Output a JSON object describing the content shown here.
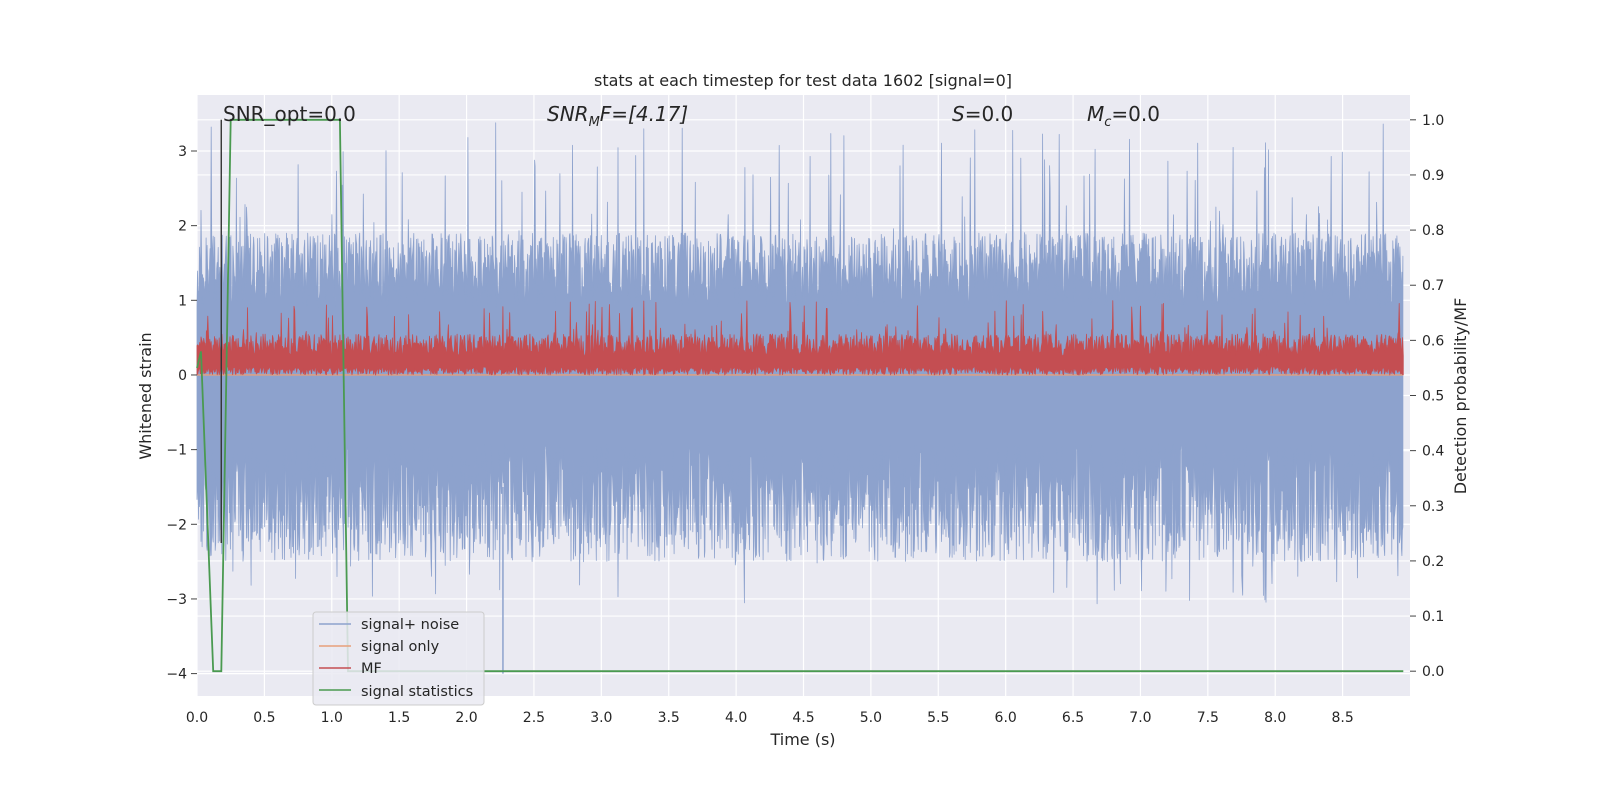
{
  "chart_data": {
    "type": "line",
    "title": "stats at each timestep for test data 1602 [signal=0]",
    "xlabel": "Time (s)",
    "ylabel": "Whitened strain",
    "ylabel_right": "Detection probability/MF",
    "xlim": [
      0.0,
      9.0
    ],
    "ylim": [
      -4.3,
      3.75
    ],
    "ylim_right": [
      -0.045,
      1.045
    ],
    "x_ticks": [
      "0.0",
      "0.5",
      "1.0",
      "1.5",
      "2.0",
      "2.5",
      "3.0",
      "3.5",
      "4.0",
      "4.5",
      "5.0",
      "5.5",
      "6.0",
      "6.5",
      "7.0",
      "7.5",
      "8.0",
      "8.5"
    ],
    "y_ticks": [
      "3",
      "2",
      "1",
      "0",
      "−1",
      "−2",
      "−3",
      "−4"
    ],
    "y_ticks_right": [
      "1.0",
      "0.9",
      "0.8",
      "0.7",
      "0.6",
      "0.5",
      "0.4",
      "0.3",
      "0.2",
      "0.1",
      "0.0"
    ],
    "grid": true,
    "legend_position": "lower-left",
    "annotations": {
      "snr_opt": "SNR_opt=0.0",
      "snr_mf_main": "SNR",
      "snr_mf_sub": "M",
      "snr_mf_rest": "F=[4.17]",
      "s_main": "S",
      "s_rest": "=0.0",
      "mc_main": "M",
      "mc_sub": "c",
      "mc_rest": "=0.0"
    },
    "marker_line_x": 0.18,
    "series": [
      {
        "name": "signal+ noise",
        "color": "#8da2cd",
        "axis": "left",
        "description": "noise band",
        "band_low": -1.6,
        "band_high": 1.9,
        "spike_max": 3.4,
        "spike_min": -4.0
      },
      {
        "name": "signal only",
        "color": "#e8a07a",
        "axis": "left",
        "x": [
          0.0,
          9.0
        ],
        "y": [
          0.0,
          0.0
        ]
      },
      {
        "name": "MF",
        "color": "#c44e52",
        "axis": "left",
        "baseline": 0.0,
        "typical_high": 0.55,
        "max": 1.0
      },
      {
        "name": "signal statistics",
        "color": "#4a9a50",
        "axis": "right",
        "x": [
          0.0,
          0.03,
          0.12,
          0.18,
          0.25,
          1.06,
          1.12,
          8.95
        ],
        "y": [
          0.55,
          0.58,
          0.0,
          0.0,
          1.0,
          1.0,
          0.0,
          0.0
        ]
      }
    ]
  }
}
